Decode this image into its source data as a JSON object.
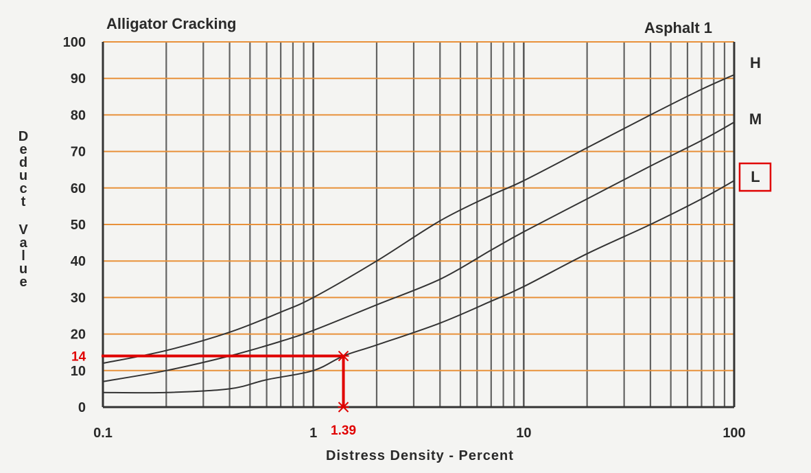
{
  "chart_data": {
    "type": "line",
    "title": "Alligator Cracking",
    "subtitle": "Asphalt 1",
    "xlabel": "Distress Density - Percent",
    "ylabel": "Deduct Value",
    "x_scale": "log",
    "xlim": [
      0.1,
      100
    ],
    "ylim": [
      0,
      100
    ],
    "x_ticks": [
      "0.1",
      "1",
      "10",
      "100"
    ],
    "y_ticks": [
      "0",
      "10",
      "20",
      "30",
      "40",
      "50",
      "60",
      "70",
      "80",
      "90",
      "100"
    ],
    "grid": true,
    "series": [
      {
        "name": "H",
        "x": [
          0.1,
          0.2,
          0.4,
          0.7,
          1,
          2,
          4,
          7,
          10,
          20,
          40,
          70,
          100
        ],
        "y": [
          12,
          15.5,
          20.5,
          26,
          30,
          40,
          51,
          58,
          62,
          71,
          80,
          87,
          91
        ]
      },
      {
        "name": "M",
        "x": [
          0.1,
          0.2,
          0.4,
          0.7,
          1,
          2,
          4,
          7,
          10,
          20,
          40,
          70,
          100
        ],
        "y": [
          7,
          10,
          14,
          18,
          21,
          28,
          35,
          43,
          48,
          57,
          66,
          73,
          78
        ]
      },
      {
        "name": "L",
        "x": [
          0.1,
          0.2,
          0.4,
          0.6,
          1,
          1.39,
          2,
          4,
          7,
          10,
          20,
          40,
          70,
          100
        ],
        "y": [
          4,
          4,
          5,
          7.5,
          10,
          14,
          17,
          23,
          29,
          33,
          42,
          50,
          57,
          62
        ]
      }
    ],
    "highlighted_series": "L",
    "annotation": {
      "x": 1.39,
      "y": 14,
      "x_label": "1.39",
      "y_label": "14",
      "color": "#e00000"
    },
    "colors": {
      "grid_horizontal": "#e8913a",
      "grid_vertical": "#333333",
      "curve": "#333333",
      "annotation": "#e00000"
    }
  }
}
